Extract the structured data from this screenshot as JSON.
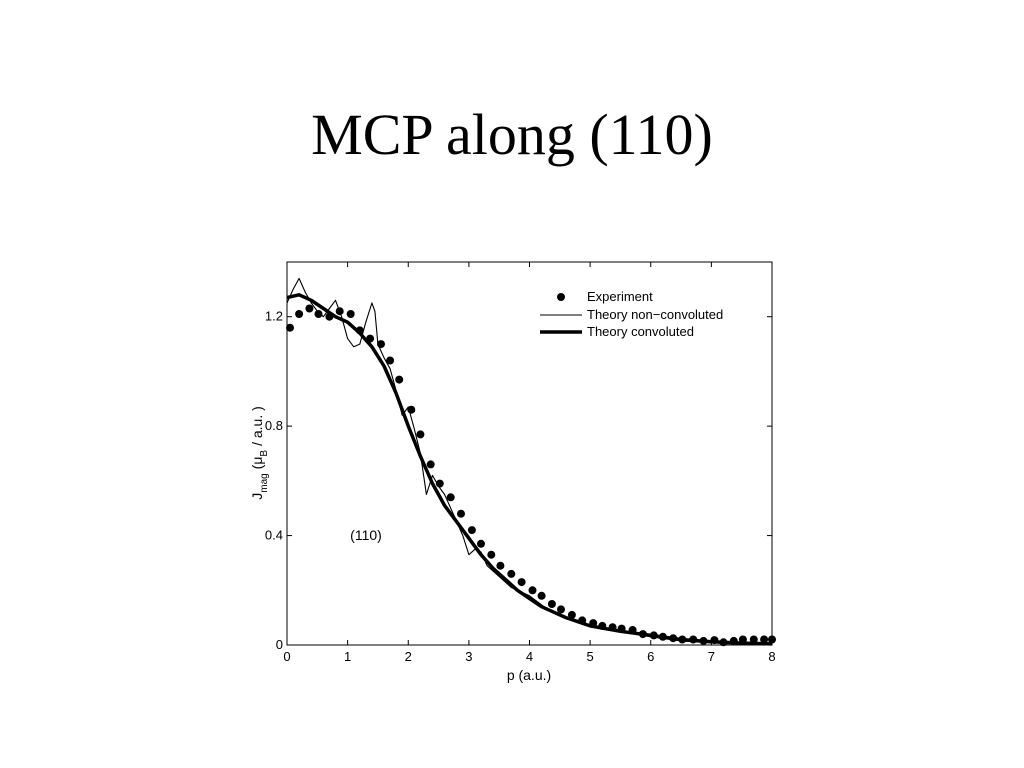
{
  "slide": {
    "title": "MCP along (110)"
  },
  "chart_data": {
    "type": "line",
    "xlabel": "p (a.u.)",
    "ylabel": "J",
    "ylabel_sub": "mag",
    "ylabel_rest_a": "(μ",
    "ylabel_sub2": "B",
    "ylabel_rest_b": "/ a.u. )",
    "annotation": "(110)",
    "xlim": [
      0,
      8
    ],
    "ylim": [
      0,
      1.4
    ],
    "xticks": [
      0,
      1,
      2,
      3,
      4,
      5,
      6,
      7,
      8
    ],
    "yticks": [
      0,
      0.4,
      0.8,
      1.2
    ],
    "ytick_labels": [
      "0",
      "0.4",
      "0.8",
      "1.2"
    ],
    "legend_position": "top-right",
    "series": [
      {
        "name": "Experiment",
        "kind": "scatter",
        "color": "#000000",
        "x": [
          0.05,
          0.2,
          0.37,
          0.52,
          0.7,
          0.87,
          1.05,
          1.2,
          1.37,
          1.55,
          1.7,
          1.85,
          2.05,
          2.2,
          2.37,
          2.52,
          2.7,
          2.87,
          3.05,
          3.2,
          3.37,
          3.52,
          3.7,
          3.87,
          4.05,
          4.2,
          4.37,
          4.52,
          4.7,
          4.87,
          5.05,
          5.2,
          5.37,
          5.52,
          5.7,
          5.87,
          6.05,
          6.2,
          6.37,
          6.52,
          6.7,
          6.87,
          7.05,
          7.2,
          7.37,
          7.52,
          7.7,
          7.87,
          8.0
        ],
        "y": [
          1.16,
          1.21,
          1.23,
          1.21,
          1.2,
          1.22,
          1.21,
          1.15,
          1.12,
          1.1,
          1.04,
          0.97,
          0.86,
          0.77,
          0.66,
          0.59,
          0.54,
          0.48,
          0.42,
          0.37,
          0.33,
          0.29,
          0.26,
          0.23,
          0.2,
          0.18,
          0.15,
          0.13,
          0.11,
          0.09,
          0.08,
          0.07,
          0.065,
          0.06,
          0.055,
          0.04,
          0.035,
          0.03,
          0.025,
          0.02,
          0.02,
          0.015,
          0.018,
          0.01,
          0.015,
          0.02,
          0.02,
          0.02,
          0.02
        ]
      },
      {
        "name": "Theory non−convoluted",
        "kind": "line",
        "color": "#000000",
        "x": [
          0,
          0.1,
          0.2,
          0.3,
          0.4,
          0.5,
          0.6,
          0.7,
          0.8,
          0.9,
          1.0,
          1.1,
          1.2,
          1.3,
          1.4,
          1.45,
          1.5,
          1.6,
          1.7,
          1.8,
          1.9,
          2.0,
          2.1,
          2.2,
          2.3,
          2.4,
          2.5,
          2.6,
          2.7,
          2.8,
          2.9,
          3.0,
          3.1,
          3.2,
          3.3,
          3.5,
          3.7,
          4.0,
          4.3,
          4.6,
          5.0,
          5.5,
          6.0,
          6.5,
          7.0,
          7.5,
          8.0
        ],
        "y": [
          1.25,
          1.3,
          1.34,
          1.29,
          1.25,
          1.22,
          1.2,
          1.23,
          1.26,
          1.2,
          1.12,
          1.09,
          1.1,
          1.18,
          1.25,
          1.22,
          1.1,
          1.05,
          1.01,
          0.93,
          0.84,
          0.87,
          0.79,
          0.7,
          0.55,
          0.62,
          0.58,
          0.55,
          0.5,
          0.45,
          0.4,
          0.33,
          0.35,
          0.34,
          0.29,
          0.25,
          0.21,
          0.18,
          0.13,
          0.1,
          0.07,
          0.05,
          0.03,
          0.015,
          0.008,
          0.005,
          0.003
        ]
      },
      {
        "name": "Theory convoluted",
        "kind": "line",
        "color": "#000000",
        "x": [
          0,
          0.2,
          0.4,
          0.6,
          0.8,
          1.0,
          1.2,
          1.4,
          1.6,
          1.8,
          2.0,
          2.2,
          2.4,
          2.6,
          2.8,
          3.0,
          3.2,
          3.4,
          3.6,
          3.8,
          4.0,
          4.2,
          4.4,
          4.6,
          4.8,
          5.0,
          5.5,
          6.0,
          6.5,
          7.0,
          7.5,
          8.0
        ],
        "y": [
          1.27,
          1.28,
          1.26,
          1.23,
          1.2,
          1.18,
          1.14,
          1.09,
          1.02,
          0.92,
          0.8,
          0.69,
          0.59,
          0.51,
          0.45,
          0.39,
          0.33,
          0.28,
          0.24,
          0.2,
          0.17,
          0.14,
          0.12,
          0.1,
          0.085,
          0.07,
          0.05,
          0.035,
          0.02,
          0.012,
          0.007,
          0.004
        ]
      }
    ]
  }
}
